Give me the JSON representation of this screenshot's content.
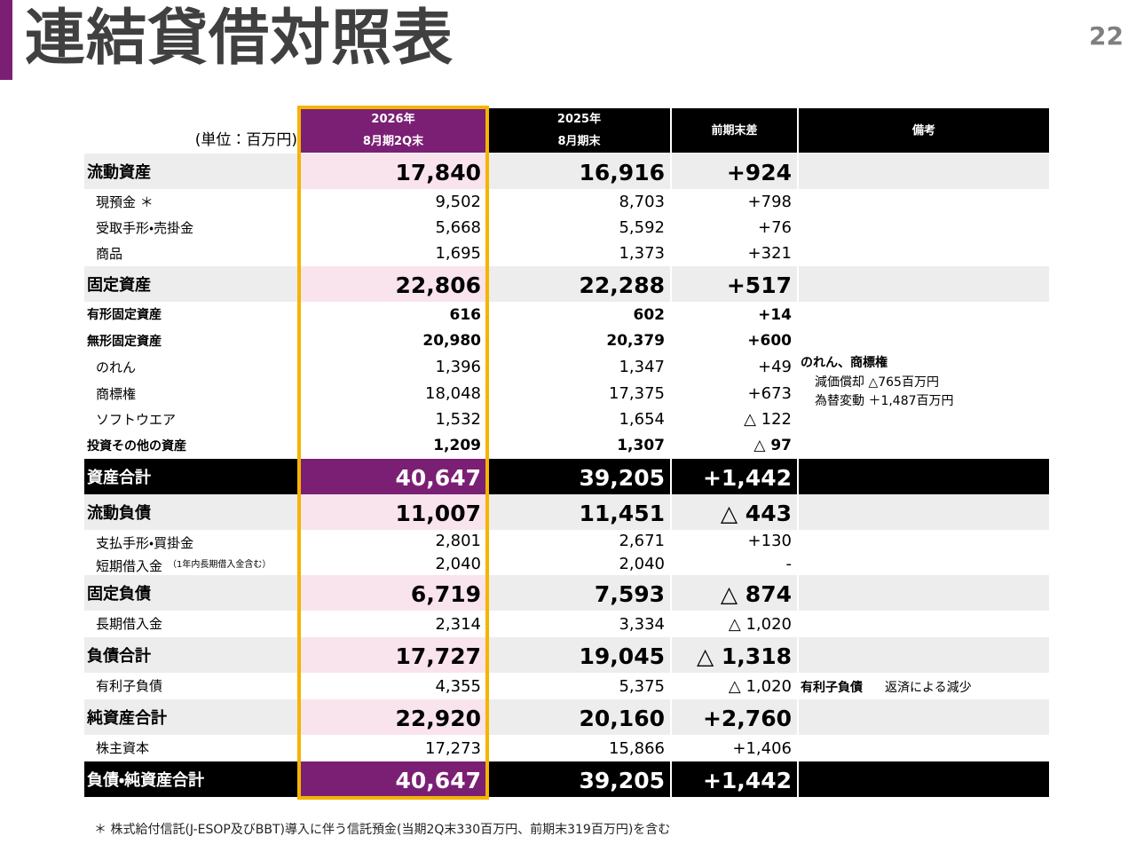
{
  "header": {
    "title": "連結貸借対照表",
    "page": "22"
  },
  "table": {
    "unit": "(単位：百万円)",
    "columns": [
      {
        "lines": [
          "2026年",
          "8月期2Q末"
        ]
      },
      {
        "lines": [
          "2025年",
          "8月期末"
        ]
      },
      {
        "lines": [
          "前期末差"
        ]
      },
      {
        "lines": [
          "備考"
        ]
      }
    ],
    "rows": [
      {
        "label": "流動資産",
        "values": [
          "17,840",
          "16,916",
          "+924"
        ]
      },
      {
        "label": "現預金 ＊",
        "values": [
          "9,502",
          "8,703",
          "+798"
        ]
      },
      {
        "label": "受取手形・売掛金",
        "values": [
          "5,668",
          "5,592",
          "+76"
        ]
      },
      {
        "label": "商品",
        "values": [
          "1,695",
          "1,373",
          "+321"
        ]
      },
      {
        "label": "固定資産",
        "values": [
          "22,806",
          "22,288",
          "+517"
        ]
      },
      {
        "label": "有形固定資産",
        "values": [
          "616",
          "602",
          "+14"
        ]
      },
      {
        "label": "無形固定資産",
        "values": [
          "20,980",
          "20,379",
          "+600"
        ]
      },
      {
        "label": "のれん",
        "values": [
          "1,396",
          "1,347",
          "+49"
        ]
      },
      {
        "label": "商標権",
        "values": [
          "18,048",
          "17,375",
          "+673"
        ]
      },
      {
        "label": "ソフトウエア",
        "values": [
          "1,532",
          "1,654",
          "△ 122"
        ]
      },
      {
        "label": "投資その他の資産",
        "values": [
          "1,209",
          "1,307",
          "△ 97"
        ]
      },
      {
        "label": "資産合計",
        "values": [
          "40,647",
          "39,205",
          "+1,442"
        ]
      },
      {
        "label": "流動負債",
        "values": [
          "11,007",
          "11,451",
          "△ 443"
        ]
      },
      {
        "label": "支払手形・買掛金",
        "values": [
          "2,801",
          "2,671",
          "+130"
        ]
      },
      {
        "label": "短期借入金",
        "label_note": "（1年内長期借入金含む）",
        "values": [
          "2,040",
          "2,040",
          "-"
        ]
      },
      {
        "label": "固定負債",
        "values": [
          "6,719",
          "7,593",
          "△ 874"
        ]
      },
      {
        "label": "長期借入金",
        "values": [
          "2,314",
          "3,334",
          "△ 1,020"
        ]
      },
      {
        "label": "負債合計",
        "values": [
          "17,727",
          "19,045",
          "△ 1,318"
        ]
      },
      {
        "label": "有利子負債",
        "values": [
          "4,355",
          "5,375",
          "△ 1,020"
        ]
      },
      {
        "label": "純資産合計",
        "values": [
          "22,920",
          "20,160",
          "+2,760"
        ]
      },
      {
        "label": "株主資本",
        "values": [
          "17,273",
          "15,866",
          "+1,406"
        ]
      },
      {
        "label": "負債・純資産合計",
        "values": [
          "40,647",
          "39,205",
          "+1,442"
        ]
      }
    ]
  },
  "notes": {
    "goodwill": {
      "title": "のれん、商標権",
      "lines": [
        "減価償却 △765百万円",
        "為替変動 ＋1,487百万円"
      ]
    },
    "debt": {
      "title": "有利子負債",
      "text": "返済による減少"
    }
  },
  "footnote": "＊ 株式給付信託(J-ESOP及びBBT)導入に伴う信託預金(当期2Q末330百万円、前期末319百万円)を含む"
}
